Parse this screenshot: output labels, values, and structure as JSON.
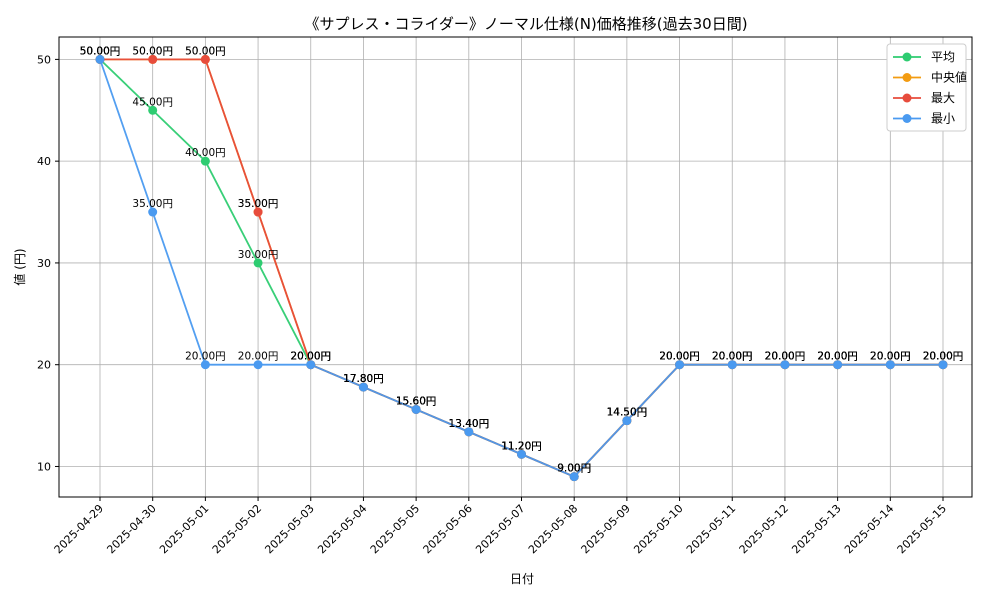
{
  "chart_data": {
    "type": "line",
    "title": "《サプレス・コライダー》ノーマル仕様(N)価格推移(過去30日間)",
    "xlabel": "日付",
    "ylabel": "値 (円)",
    "ylim": [
      7,
      52.2
    ],
    "yticks": [
      10,
      20,
      30,
      40,
      50
    ],
    "grid": true,
    "legend_position": "top-right",
    "value_suffix": "円",
    "categories": [
      "2025-04-29",
      "2025-04-30",
      "2025-05-01",
      "2025-05-02",
      "2025-05-03",
      "2025-05-04",
      "2025-05-05",
      "2025-05-06",
      "2025-05-07",
      "2025-05-08",
      "2025-05-09",
      "2025-05-10",
      "2025-05-11",
      "2025-05-12",
      "2025-05-13",
      "2025-05-14",
      "2025-05-15"
    ],
    "series": [
      {
        "name": "平均",
        "color": "#2ecc71",
        "label_color": "#000000",
        "values": [
          50,
          45,
          40,
          30,
          20,
          17.8,
          15.6,
          13.4,
          11.2,
          9,
          14.5,
          20,
          20,
          20,
          20,
          20,
          20
        ]
      },
      {
        "name": "中央値",
        "color": "#f39c12",
        "label_color": "#000000",
        "values": [
          50,
          50,
          50,
          35,
          20,
          17.8,
          15.6,
          13.4,
          11.2,
          9,
          14.5,
          20,
          20,
          20,
          20,
          20,
          20
        ]
      },
      {
        "name": "最大",
        "color": "#e74c3c",
        "label_color": "#000000",
        "values": [
          50,
          50,
          50,
          35,
          20,
          17.8,
          15.6,
          13.4,
          11.2,
          9,
          14.5,
          20,
          20,
          20,
          20,
          20,
          20
        ]
      },
      {
        "name": "最小",
        "color": "#4a9af0",
        "label_color": "#000000",
        "values": [
          50,
          35,
          20,
          20,
          20,
          17.8,
          15.6,
          13.4,
          11.2,
          9,
          14.5,
          20,
          20,
          20,
          20,
          20,
          20
        ]
      }
    ]
  }
}
